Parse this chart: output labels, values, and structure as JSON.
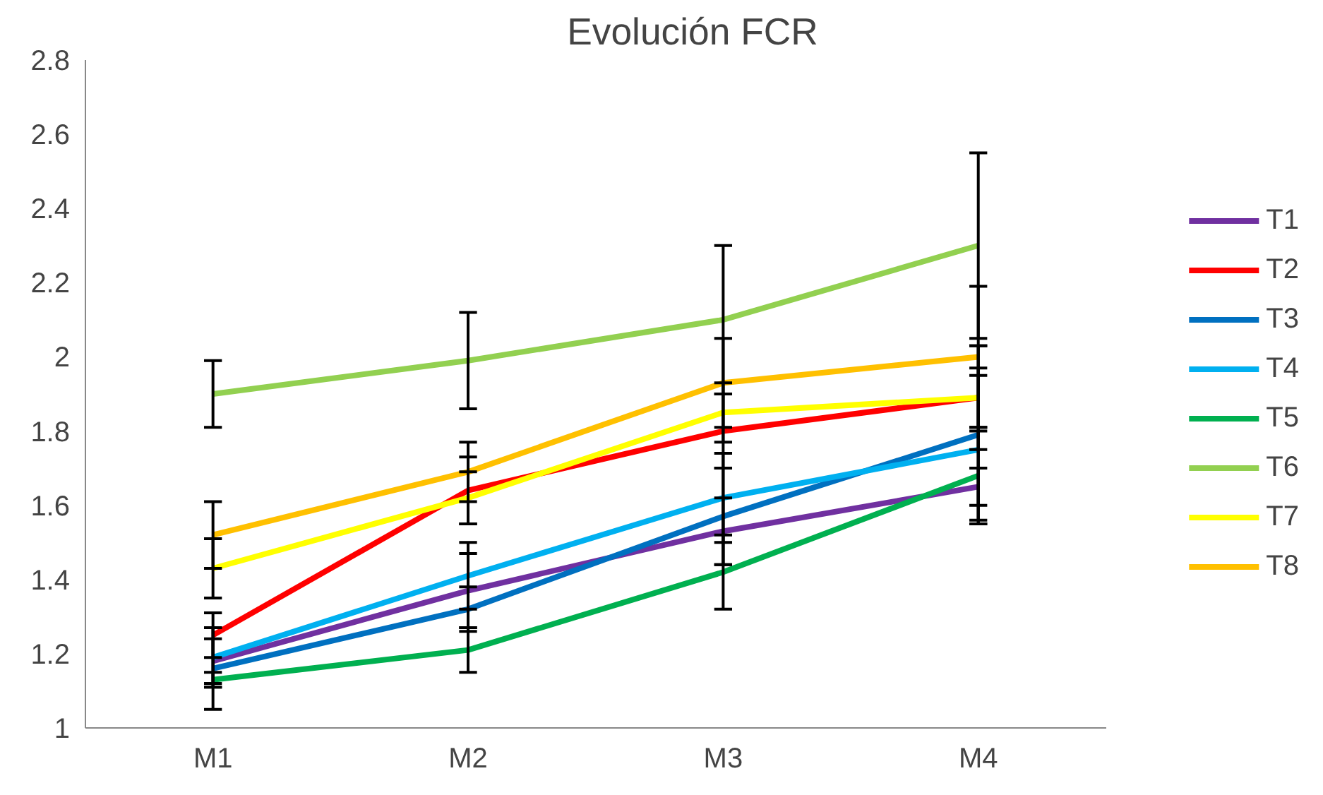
{
  "chart_data": {
    "type": "line",
    "title": "Evolución FCR",
    "categories": [
      "M1",
      "M2",
      "M3",
      "M4"
    ],
    "ylim": [
      1,
      2.8
    ],
    "yticks": [
      1,
      1.2,
      1.4,
      1.6,
      1.8,
      2,
      2.2,
      2.4,
      2.6,
      2.8
    ],
    "grid": false,
    "legend": "right",
    "line_style": "solid",
    "series": [
      {
        "name": "T1",
        "color": "#7030a0",
        "values": [
          1.18,
          1.37,
          1.53,
          1.65
        ],
        "errors": [
          0.06,
          0.1,
          0.09,
          0.05
        ]
      },
      {
        "name": "T2",
        "color": "#ff0000",
        "values": [
          1.25,
          1.64,
          1.8,
          1.89
        ],
        "errors": [
          0.06,
          0.09,
          0.1,
          0.08
        ]
      },
      {
        "name": "T3",
        "color": "#0070c0",
        "values": [
          1.16,
          1.32,
          1.57,
          1.79
        ],
        "errors": [
          0.11,
          0.06,
          0.13,
          0.24
        ]
      },
      {
        "name": "T4",
        "color": "#00b0f0",
        "values": [
          1.19,
          1.41,
          1.62,
          1.75
        ],
        "errors": [
          0.08,
          0.09,
          0.12,
          0.2
        ]
      },
      {
        "name": "T5",
        "color": "#00b050",
        "values": [
          1.13,
          1.21,
          1.42,
          1.68
        ],
        "errors": [
          0.02,
          0.06,
          0.1,
          0.12
        ]
      },
      {
        "name": "T6",
        "color": "#92d050",
        "values": [
          1.9,
          1.99,
          2.1,
          2.3
        ],
        "errors": [
          0.09,
          0.13,
          0.2,
          0.25
        ]
      },
      {
        "name": "T7",
        "color": "#ffff00",
        "values": [
          1.43,
          1.62,
          1.85,
          1.89
        ],
        "errors": [
          0.08,
          0.07,
          0.08,
          0.14
        ]
      },
      {
        "name": "T8",
        "color": "#ffc000",
        "values": [
          1.52,
          1.69,
          1.93,
          2.0
        ],
        "errors": [
          0.09,
          0.08,
          0.12,
          0.19
        ]
      }
    ]
  }
}
